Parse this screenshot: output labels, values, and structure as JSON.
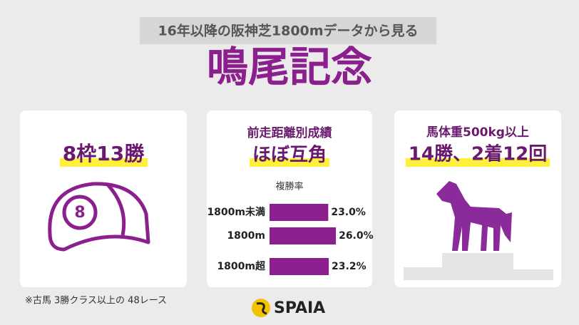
{
  "header": {
    "subtitle": "16年以降の阪神芝1800mデータから見る",
    "title": "鳴尾記念"
  },
  "cards": [
    {
      "headline": "8枠13勝",
      "cap_number": "8"
    },
    {
      "headline": "前走距離別成績",
      "subheadline": "ほぼ互角"
    },
    {
      "headline": "馬体重500kg以上",
      "subheadline": "14勝、2着12回"
    }
  ],
  "chart_data": {
    "type": "bar",
    "title": "複勝率",
    "categories": [
      "1800m未満",
      "1800m",
      "1800m超"
    ],
    "values": [
      23.0,
      26.0,
      23.2
    ],
    "value_labels": [
      "23.0%",
      "26.0%",
      "23.2%"
    ],
    "color": "#8b1f8d"
  },
  "footnote": "※古馬 3勝クラス以上の 48レース",
  "logo": "SPAIA"
}
